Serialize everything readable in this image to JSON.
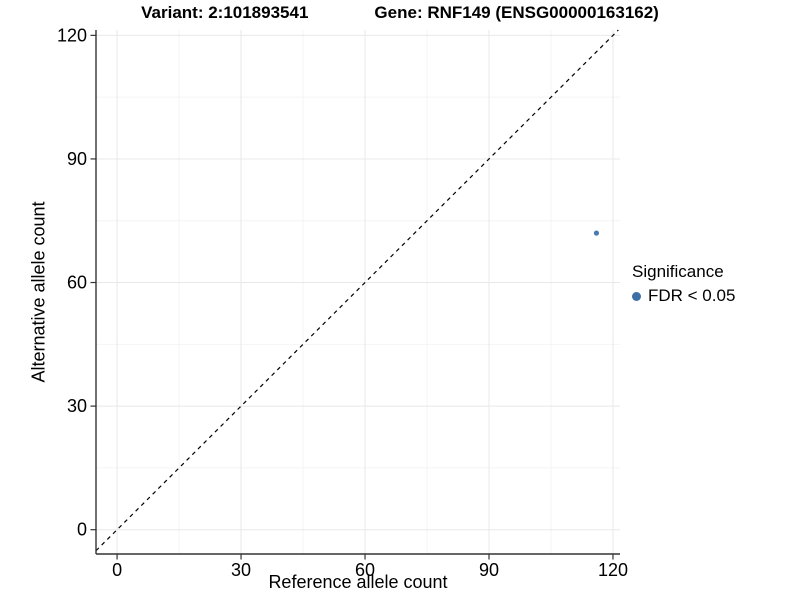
{
  "title": {
    "variant": "Variant: 2:101893541",
    "gene": "Gene: RNF149 (ENSG00000163162)"
  },
  "chart_data": {
    "type": "scatter",
    "xlabel": "Reference allele count",
    "ylabel": "Alternative allele count",
    "xlim": [
      -5.1,
      121.7
    ],
    "ylim": [
      -5.9,
      121.3
    ],
    "xticks": [
      0,
      30,
      60,
      90,
      120
    ],
    "yticks": [
      0,
      30,
      60,
      90,
      120
    ],
    "xticks_minor": [
      15,
      45,
      75,
      105
    ],
    "yticks_minor": [
      15,
      45,
      75,
      105
    ],
    "grid": {
      "major": true,
      "minor": true
    },
    "points": [
      {
        "x": 116,
        "y": 72,
        "significance": "FDR < 0.05"
      }
    ],
    "identity_line": {
      "slope": 1,
      "intercept": 0,
      "style": "dashed",
      "color": "#000000"
    },
    "point_color": "#4A7AB2",
    "legend": {
      "position": "right",
      "title": "Significance",
      "items": [
        {
          "label": "FDR < 0.05",
          "color": "#3E6FA7"
        }
      ]
    }
  },
  "colors": {
    "axis": "#333333",
    "grid_major": "#E8E8E8",
    "grid_minor": "#F4F4F4",
    "background": "#FFFFFF",
    "text": "#000000"
  }
}
